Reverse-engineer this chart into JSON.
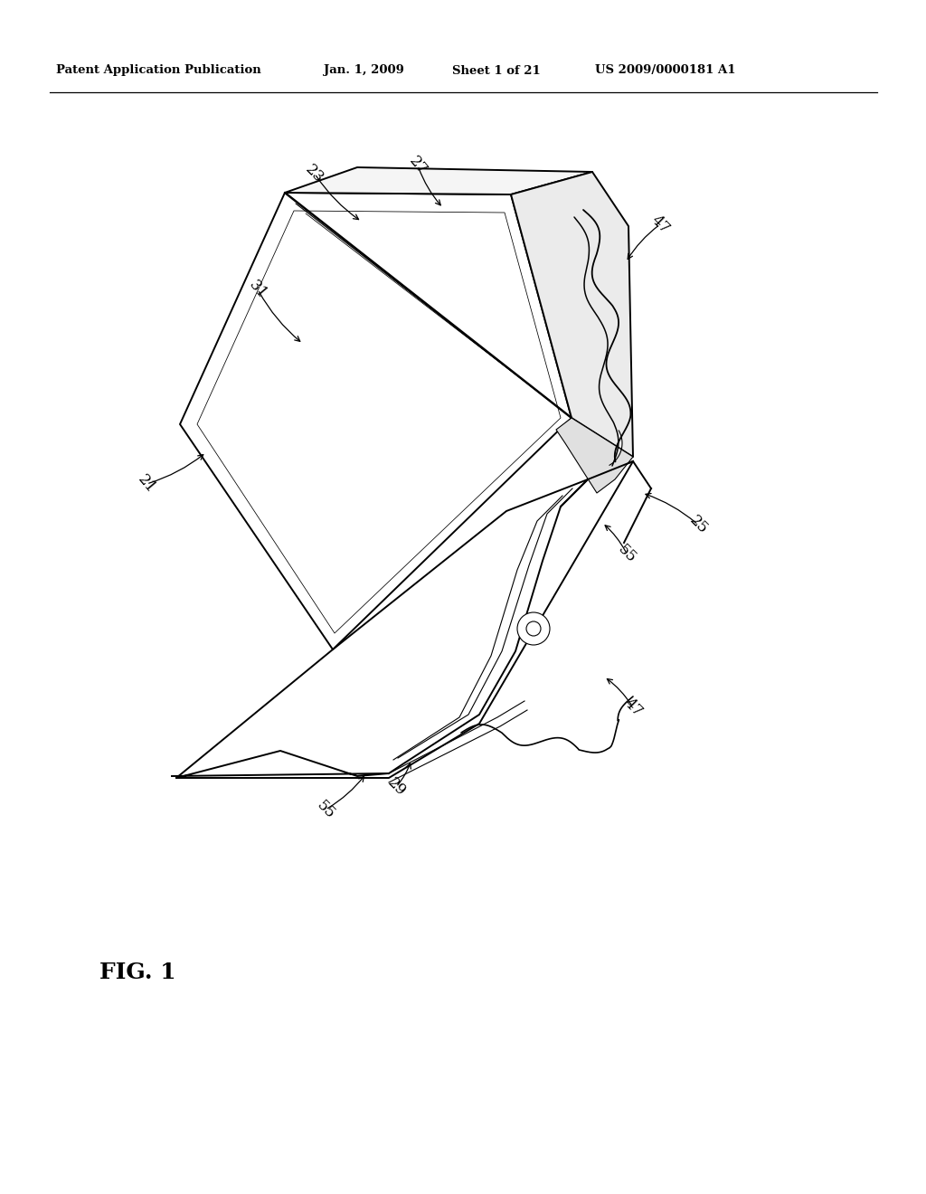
{
  "background_color": "#ffffff",
  "header_text": "Patent Application Publication",
  "header_date": "Jan. 1, 2009",
  "header_sheet": "Sheet 1 of 21",
  "header_patent": "US 2009/0000181 A1",
  "figure_label": "FIG. 1",
  "line_color": "#000000",
  "lw_main": 1.4,
  "lw_thin": 0.8,
  "lw_thick": 2.2
}
